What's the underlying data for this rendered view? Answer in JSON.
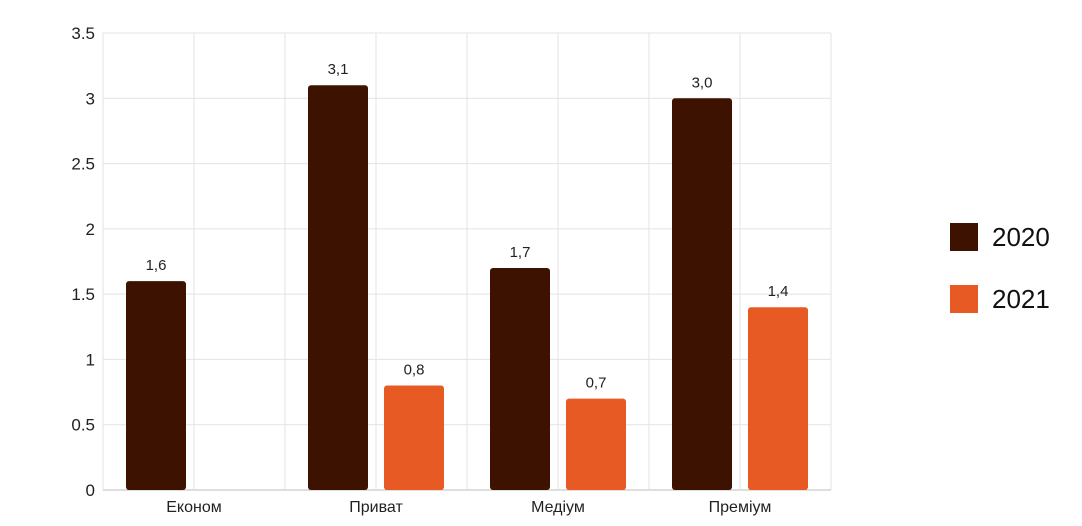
{
  "chart_data": {
    "type": "bar",
    "categories": [
      "Економ",
      "Приват",
      "Медіум",
      "Преміум"
    ],
    "series": [
      {
        "name": "2020",
        "color": "#3d1200",
        "values": [
          1.6,
          3.1,
          1.7,
          3.0
        ],
        "labels": [
          "1,6",
          "3,1",
          "1,7",
          "3,0"
        ]
      },
      {
        "name": "2021",
        "color": "#e85a24",
        "values": [
          null,
          0.8,
          0.7,
          1.4
        ],
        "labels": [
          "",
          "0,8",
          "0,7",
          "1,4"
        ]
      }
    ],
    "yticks": [
      "0",
      "0.5",
      "1",
      "1.5",
      "2",
      "2.5",
      "3",
      "3.5"
    ],
    "ylim": [
      0,
      3.5
    ],
    "grid": true,
    "legend_position": "right"
  }
}
